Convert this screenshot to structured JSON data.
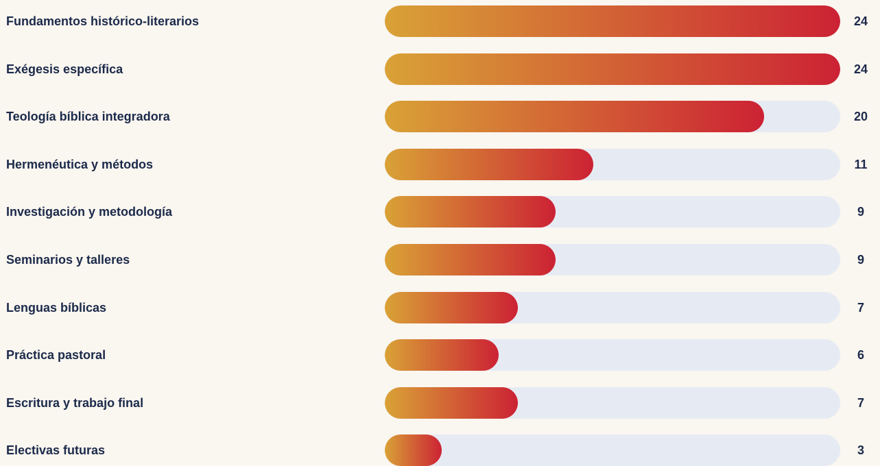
{
  "chart_data": {
    "type": "bar",
    "orientation": "horizontal",
    "categories": [
      "Fundamentos histórico-literarios",
      "Exégesis específica",
      "Teología bíblica integradora",
      "Hermenéutica y métodos",
      "Investigación y metodología",
      "Seminarios y talleres",
      "Lenguas bíblicas",
      "Práctica pastoral",
      "Escritura y trabajo final",
      "Electivas futuras"
    ],
    "values": [
      24,
      24,
      20,
      11,
      9,
      9,
      7,
      6,
      7,
      3
    ],
    "xlim": [
      0,
      24
    ],
    "grid": false,
    "colors": {
      "fill_start": "#d9a236",
      "fill_end": "#cc2234",
      "track": "#e6ebf3",
      "text": "#1b2a4a",
      "background": "#faf6f0"
    }
  }
}
